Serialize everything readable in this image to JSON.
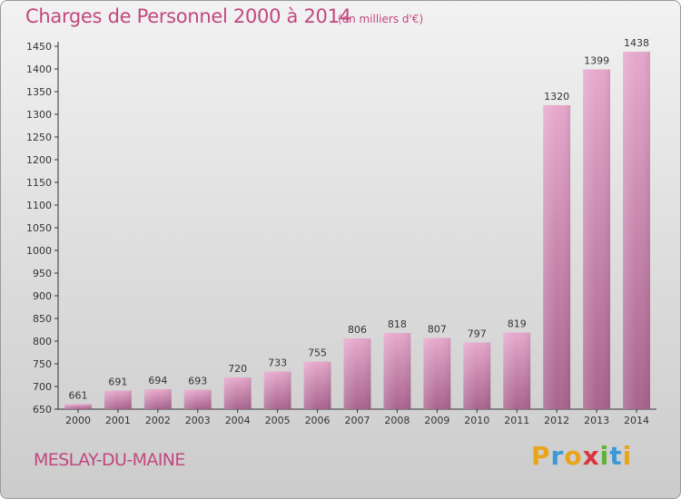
{
  "header": {
    "title": "Charges de Personnel 2000 à 2014",
    "unit": "(en milliers d'€)"
  },
  "footer": {
    "commune": "MESLAY-DU-MAINE",
    "brand_letters": [
      "P",
      "r",
      "o",
      "x",
      "i",
      "t",
      "i"
    ],
    "brand_colors": [
      "#e9a41b",
      "#3a9ad9",
      "#e9a41b",
      "#d9363e",
      "#5fb137",
      "#3a9ad9",
      "#e9a41b"
    ]
  },
  "colors": {
    "bar_top": "#e6a8cc",
    "bar_bottom": "#a9648e",
    "accent": "#c2477e"
  },
  "chart_data": {
    "type": "bar",
    "categories": [
      "2000",
      "2001",
      "2002",
      "2003",
      "2004",
      "2005",
      "2006",
      "2007",
      "2008",
      "2009",
      "2010",
      "2011",
      "2012",
      "2013",
      "2014"
    ],
    "values": [
      661,
      691,
      694,
      693,
      720,
      733,
      755,
      806,
      818,
      807,
      797,
      819,
      1320,
      1399,
      1438
    ],
    "value_labels": [
      "661",
      "691",
      "694",
      "693",
      "720",
      "733",
      "755",
      "806",
      "818",
      "807",
      "797",
      "819",
      "1320",
      "1399",
      "1438"
    ],
    "yticks": [
      "650",
      "700",
      "750",
      "800",
      "850",
      "900",
      "950",
      "1000",
      "1050",
      "1100",
      "1150",
      "1200",
      "1250",
      "1300",
      "1350",
      "1400",
      "1450"
    ],
    "ylim": [
      650,
      1450
    ],
    "grid": false,
    "title": "Charges de Personnel 2000 à 2014",
    "xlabel": "",
    "ylabel": ""
  }
}
